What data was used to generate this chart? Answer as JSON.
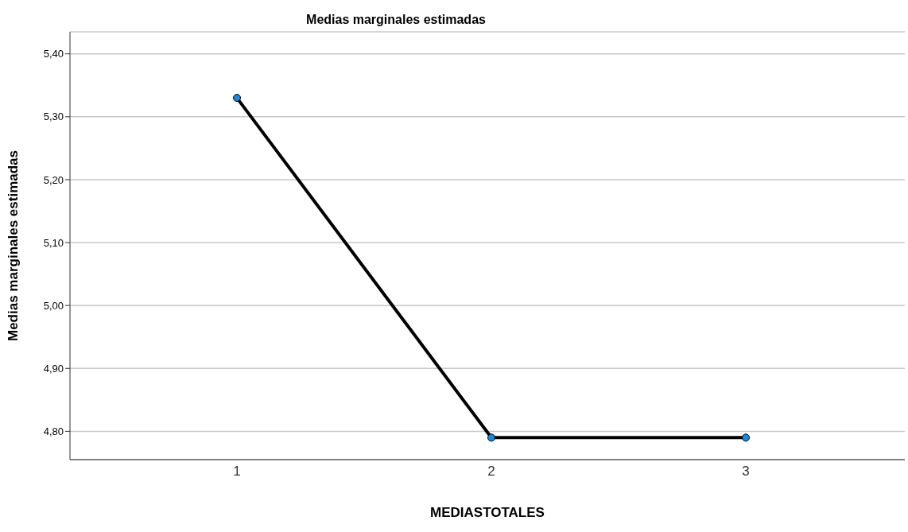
{
  "chart_data": {
    "type": "line",
    "title": "Medias marginales estimadas",
    "xlabel": "MEDIASTOTALES",
    "ylabel": "Medias marginales estimadas",
    "categories": [
      "1",
      "2",
      "3"
    ],
    "series": [
      {
        "color": "#000000",
        "values": [
          5.33,
          4.79,
          4.79
        ]
      }
    ],
    "ylim": [
      4.755,
      5.435
    ],
    "yticks": [
      {
        "value": 4.8,
        "label": "4,80"
      },
      {
        "value": 4.9,
        "label": "4,90"
      },
      {
        "value": 5.0,
        "label": "5,00"
      },
      {
        "value": 5.1,
        "label": "5,10"
      },
      {
        "value": 5.2,
        "label": "5,20"
      },
      {
        "value": 5.3,
        "label": "5,30"
      },
      {
        "value": 5.4,
        "label": "5,40"
      }
    ],
    "grid": "y",
    "marker": "circle",
    "line_style": "solid",
    "legend": false
  }
}
